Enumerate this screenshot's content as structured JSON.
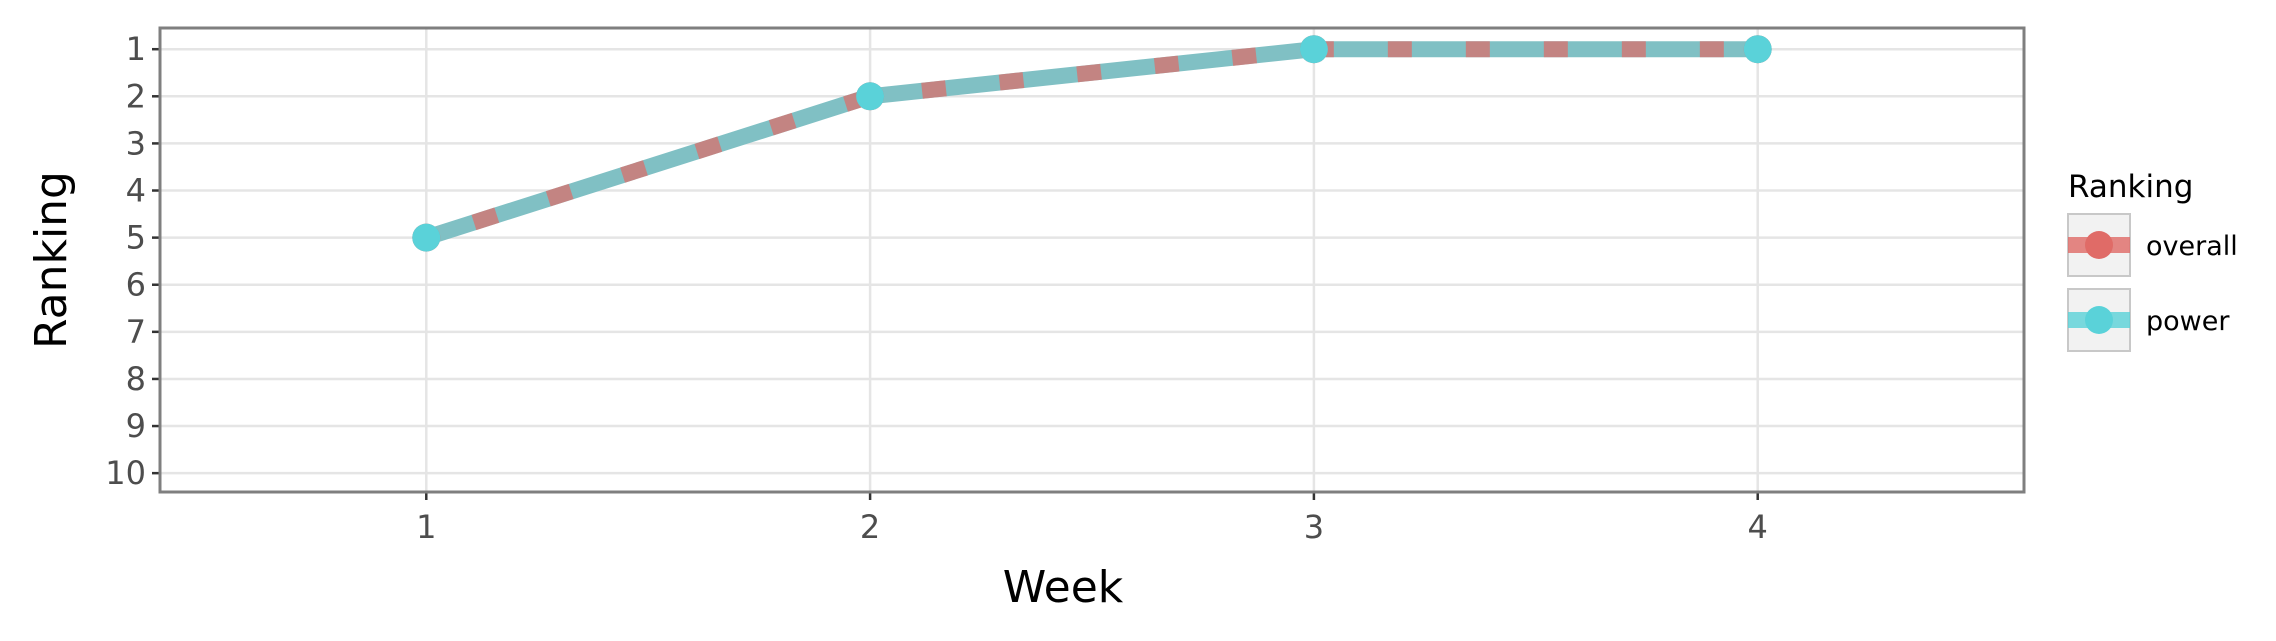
{
  "chart_data": {
    "type": "line",
    "title": "",
    "xlabel": "Week",
    "ylabel": "Ranking",
    "x": [
      1,
      2,
      3,
      4
    ],
    "x_ticks": [
      "1",
      "2",
      "3",
      "4"
    ],
    "xlim": [
      0.4,
      4.6
    ],
    "y_ticks": [
      "1",
      "2",
      "3",
      "4",
      "5",
      "6",
      "7",
      "8",
      "9",
      "10"
    ],
    "ylim": [
      10.4,
      0.55
    ],
    "y_reversed": true,
    "grid": true,
    "legend": {
      "title": "Ranking",
      "placement": "right"
    },
    "series": [
      {
        "name": "overall",
        "values": [
          5,
          2,
          1,
          1
        ],
        "color": "#e06b67",
        "line_style": "dashed"
      },
      {
        "name": "power",
        "values": [
          5,
          2,
          1,
          1
        ],
        "color": "#5ad2d9",
        "line_style": "solid"
      }
    ],
    "colors": {
      "panel_border": "#7f7f7f",
      "grid": "#e5e5e5",
      "line_blend": "#80c0c4"
    }
  }
}
